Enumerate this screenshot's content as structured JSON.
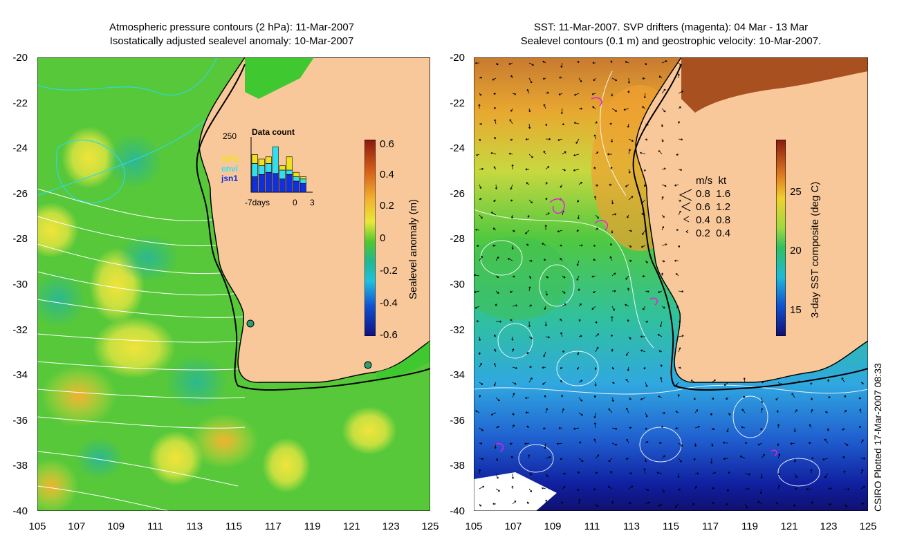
{
  "left_panel": {
    "title_line1": "Atmospheric pressure contours (2 hPa): 11-Mar-2007",
    "title_line2": "Isostatically adjusted sealevel anomaly: 10-Mar-2007",
    "colorbar": {
      "title": "Sealevel anomaly (m)",
      "ticks": [
        "0.6",
        "0.4",
        "0.2",
        "0",
        "-0.2",
        "-0.4",
        "-0.6"
      ]
    },
    "data_count": {
      "title": "Data count",
      "max_label": "250",
      "series_labels": [
        "GFO",
        "envi",
        "jsn1"
      ],
      "series_colors": [
        "#f0e020",
        "#30e0f0",
        "#1030e0"
      ],
      "x_labels": [
        "-7days",
        "0",
        "3"
      ],
      "bars": [
        {
          "jsn1": 70,
          "envi": 60,
          "gfo": 40
        },
        {
          "jsn1": 80,
          "envi": 40,
          "gfo": 30
        },
        {
          "jsn1": 90,
          "envi": 40,
          "gfo": 30
        },
        {
          "jsn1": 85,
          "envi": 120,
          "gfo": 0
        },
        {
          "jsn1": 60,
          "envi": 40,
          "gfo": 20
        },
        {
          "jsn1": 80,
          "envi": 20,
          "gfo": 60
        },
        {
          "jsn1": 50,
          "envi": 20,
          "gfo": 20
        },
        {
          "jsn1": 40,
          "envi": 20,
          "gfo": 10
        }
      ]
    }
  },
  "right_panel": {
    "title_line1": "SST: 11-Mar-2007. SVP drifters (magenta): 04 Mar - 13 Mar",
    "title_line2": "Sealevel contours (0.1 m) and geostrophic velocity: 10-Mar-2007.",
    "colorbar": {
      "title": "3-day SST composite (deg C)",
      "ticks": [
        "25",
        "20",
        "15"
      ]
    },
    "velocity_legend": {
      "header": "m/s  kt",
      "rows": [
        "0.8  1.6",
        "0.6  1.2",
        "0.4  0.8",
        "0.2  0.4"
      ],
      "speeds": [
        0.8,
        0.6,
        0.4,
        0.2
      ]
    }
  },
  "axes": {
    "latitudes": [
      "-20",
      "-22",
      "-24",
      "-26",
      "-28",
      "-30",
      "-32",
      "-34",
      "-36",
      "-38",
      "-40"
    ],
    "longitudes": [
      "105",
      "107",
      "109",
      "111",
      "113",
      "115",
      "117",
      "119",
      "121",
      "123",
      "125"
    ]
  },
  "footer": "CSIRO Plotted 17-Mar-2007 08:33",
  "colors": {
    "land": "#f9c89a",
    "coast": "#000000",
    "sla_green": "#40c830",
    "pressure_contour_cyan": "#30d8e0",
    "pressure_contour_white": "#ffffff",
    "drifter_magenta": "#e020e0"
  }
}
